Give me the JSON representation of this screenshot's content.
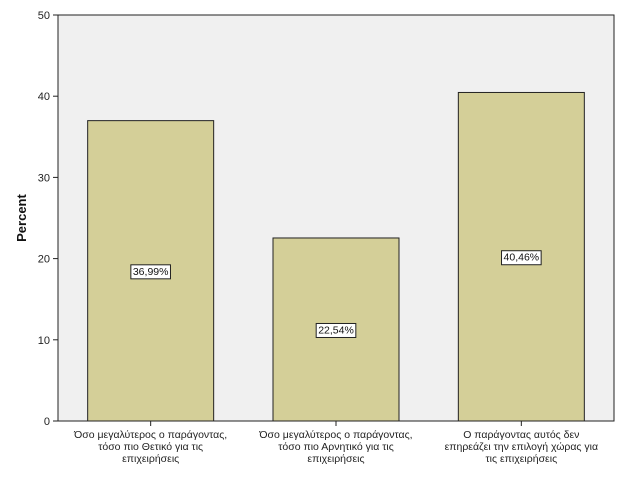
{
  "chart_data": {
    "type": "bar",
    "ylabel": "Percent",
    "ylim": [
      0,
      50
    ],
    "yticks": [
      0,
      10,
      20,
      30,
      40,
      50
    ],
    "grid": false,
    "categories": [
      [
        "Όσο μεγαλύτερος ο παράγοντας,",
        "τόσο πιο Θετικό για τις",
        "επιχειρήσεις"
      ],
      [
        "Όσο μεγαλύτερος ο παράγοντας,",
        "τόσο πιο Αρνητικό για τις",
        "επιχειρήσεις"
      ],
      [
        "Ο παράγοντας αυτός δεν",
        "επηρεάζει την επιλογή χώρας για",
        "τις επιχειρήσεις"
      ]
    ],
    "values": [
      36.99,
      22.54,
      40.46
    ],
    "data_labels": [
      "36,99%",
      "22,54%",
      "40,46%"
    ],
    "colors": {
      "bar_fill": "#d4cf98",
      "bar_stroke": "#222222",
      "plot_bg": "#f0f0f0",
      "label_box": "#ffffff"
    }
  }
}
